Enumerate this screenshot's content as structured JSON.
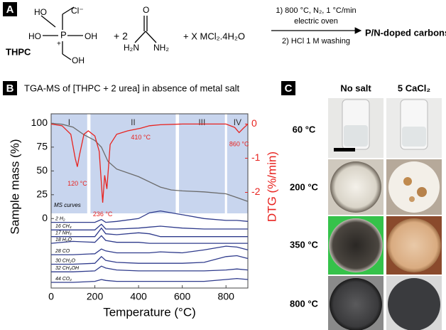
{
  "scheme": {
    "label": "A",
    "ho_top": "HO",
    "chloride": "Cl⁻",
    "phosphorus": "P",
    "charge": "+",
    "ho_left": "HO",
    "oh_right": "OH",
    "oh_bottom": "OH",
    "thpc": "THPC",
    "plus_urea": "+ 2",
    "urea_o": "O",
    "urea_h2n": "H₂N",
    "urea_nh2": "NH₂",
    "plus_salt": "+ X MCl₂.4H₂O",
    "step1": "1) 800 °C, N₂, 1 °C/min",
    "step1b": "electric oven",
    "step2": "2) HCl 1 M washing",
    "product": "P/N-doped carbons"
  },
  "chart_data": {
    "type": "line",
    "panel_label": "B",
    "title": "TGA-MS of [THPC + 2 urea] in absence of metal salt",
    "x_label": "Temperature (°C)",
    "y_label": "Sample mass (%)",
    "y2_label": "DTG (%/min)",
    "y2_color": "#e8231f",
    "xlim": [
      0,
      900
    ],
    "xticks": [
      0,
      200,
      400,
      600,
      800
    ],
    "ylim": [
      -73,
      110
    ],
    "yticks": [
      0,
      25,
      50,
      75,
      100
    ],
    "y2lim": [
      -4.8,
      0.3
    ],
    "y2ticks": [
      -2,
      -1,
      0
    ],
    "region_color": "#c8d5ee",
    "regions": [
      {
        "label": "I",
        "xlim": [
          0,
          165
        ]
      },
      {
        "label": "II",
        "xlim": [
          180,
          570
        ]
      },
      {
        "label": "III",
        "xlim": [
          585,
          795
        ]
      },
      {
        "label": "IV",
        "xlim": [
          805,
          900
        ]
      }
    ],
    "ms_label": "MS curves",
    "series": [
      {
        "color": "#6b6b6b",
        "x": [
          0,
          50,
          100,
          150,
          200,
          230,
          260,
          300,
          400,
          500,
          550,
          600,
          700,
          800,
          850,
          900
        ],
        "values": [
          100,
          99,
          96,
          88,
          82,
          75,
          60,
          52,
          44,
          33,
          30,
          29,
          28,
          26,
          22,
          18
        ]
      },
      {
        "color": "#e8231f",
        "axis": "y2",
        "x": [
          0,
          50,
          90,
          110,
          120,
          130,
          150,
          170,
          200,
          220,
          236,
          245,
          255,
          270,
          300,
          350,
          410,
          450,
          500,
          600,
          800,
          840,
          860,
          880,
          900
        ],
        "values": [
          0,
          -0.05,
          -0.3,
          -1,
          -1.25,
          -0.9,
          -0.3,
          -0.2,
          -0.35,
          -0.8,
          -2.3,
          -1.5,
          -1.9,
          -0.6,
          -0.3,
          -0.2,
          -0.12,
          -0.05,
          -0.02,
          0,
          0,
          -0.1,
          -0.25,
          -0.12,
          0
        ]
      },
      {
        "name": "2 H₂",
        "color": "#2f3b8c",
        "x": [
          0,
          100,
          200,
          230,
          250,
          300,
          400,
          450,
          500,
          600,
          700,
          800,
          850,
          900
        ],
        "values": [
          -4,
          -4,
          -4,
          -1,
          -4,
          -3,
          0,
          6,
          8,
          4,
          0,
          -2,
          -2,
          -3
        ]
      },
      {
        "name": "16 CH₄",
        "color": "#2f3b8c",
        "x": [
          0,
          100,
          200,
          230,
          250,
          300,
          400,
          450,
          500,
          600,
          700,
          800,
          850,
          900
        ],
        "values": [
          -12,
          -12,
          -12,
          -6,
          -11,
          -11,
          -10,
          -9,
          -8,
          -10,
          -11,
          -11,
          -11,
          -11
        ]
      },
      {
        "name": "17 NH₃",
        "color": "#2f3b8c",
        "x": [
          0,
          100,
          200,
          230,
          250,
          300,
          400,
          450,
          500,
          600,
          700,
          800,
          850,
          900
        ],
        "values": [
          -19,
          -19,
          -19,
          -10,
          -16,
          -17,
          -15,
          -16,
          -19,
          -19,
          -19,
          -19,
          -19,
          -19
        ]
      },
      {
        "name": "18 H₂O",
        "color": "#2f3b8c",
        "x": [
          0,
          100,
          200,
          230,
          250,
          300,
          400,
          450,
          500,
          600,
          700,
          800,
          850,
          900
        ],
        "values": [
          -26,
          -24,
          -25,
          -18,
          -23,
          -25,
          -25,
          -26,
          -26,
          -26,
          -26,
          -26,
          -26,
          -26
        ]
      },
      {
        "name": "28 CO",
        "color": "#2f3b8c",
        "x": [
          0,
          100,
          200,
          230,
          250,
          300,
          400,
          450,
          500,
          600,
          700,
          800,
          850,
          900
        ],
        "values": [
          -38,
          -38,
          -37,
          -32,
          -34,
          -36,
          -36,
          -36,
          -35,
          -36,
          -33,
          -29,
          -30,
          -33
        ]
      },
      {
        "name": "30 CH₂O",
        "color": "#2f3b8c",
        "x": [
          0,
          100,
          200,
          230,
          250,
          300,
          400,
          450,
          500,
          600,
          700,
          800,
          850,
          900
        ],
        "values": [
          -48,
          -48,
          -47,
          -40,
          -44,
          -46,
          -47,
          -47,
          -47,
          -47,
          -46,
          -40,
          -39,
          -42
        ]
      },
      {
        "name": "32 CH₃OH",
        "color": "#2f3b8c",
        "x": [
          0,
          100,
          200,
          230,
          250,
          300,
          400,
          450,
          500,
          600,
          700,
          800,
          850,
          900
        ],
        "values": [
          -56,
          -56,
          -55,
          -50,
          -52,
          -54,
          -55,
          -55,
          -55,
          -55,
          -55,
          -54,
          -53,
          -54
        ]
      },
      {
        "name": "44 CO₂",
        "color": "#2f3b8c",
        "x": [
          0,
          100,
          200,
          230,
          250,
          300,
          400,
          450,
          500,
          600,
          700,
          800,
          850,
          900
        ],
        "values": [
          -67,
          -67,
          -66,
          -64,
          -65,
          -66,
          -66,
          -66,
          -66,
          -66,
          -66,
          -64,
          -63,
          -64
        ]
      }
    ],
    "annotations": [
      {
        "text": "120 °C",
        "x": 120,
        "y": -1.75
      },
      {
        "text": "236 °C",
        "x": 236,
        "y": -2.65
      },
      {
        "text": "410 °C",
        "x": 410,
        "y": -0.4
      },
      {
        "text": "860 °C",
        "x": 860,
        "y": -0.6
      }
    ]
  },
  "photos": {
    "label": "C",
    "columns": [
      "No salt",
      "5 CaCl₂"
    ],
    "rows": [
      "60 °C",
      "200 °C",
      "350 °C",
      "800 °C"
    ]
  }
}
